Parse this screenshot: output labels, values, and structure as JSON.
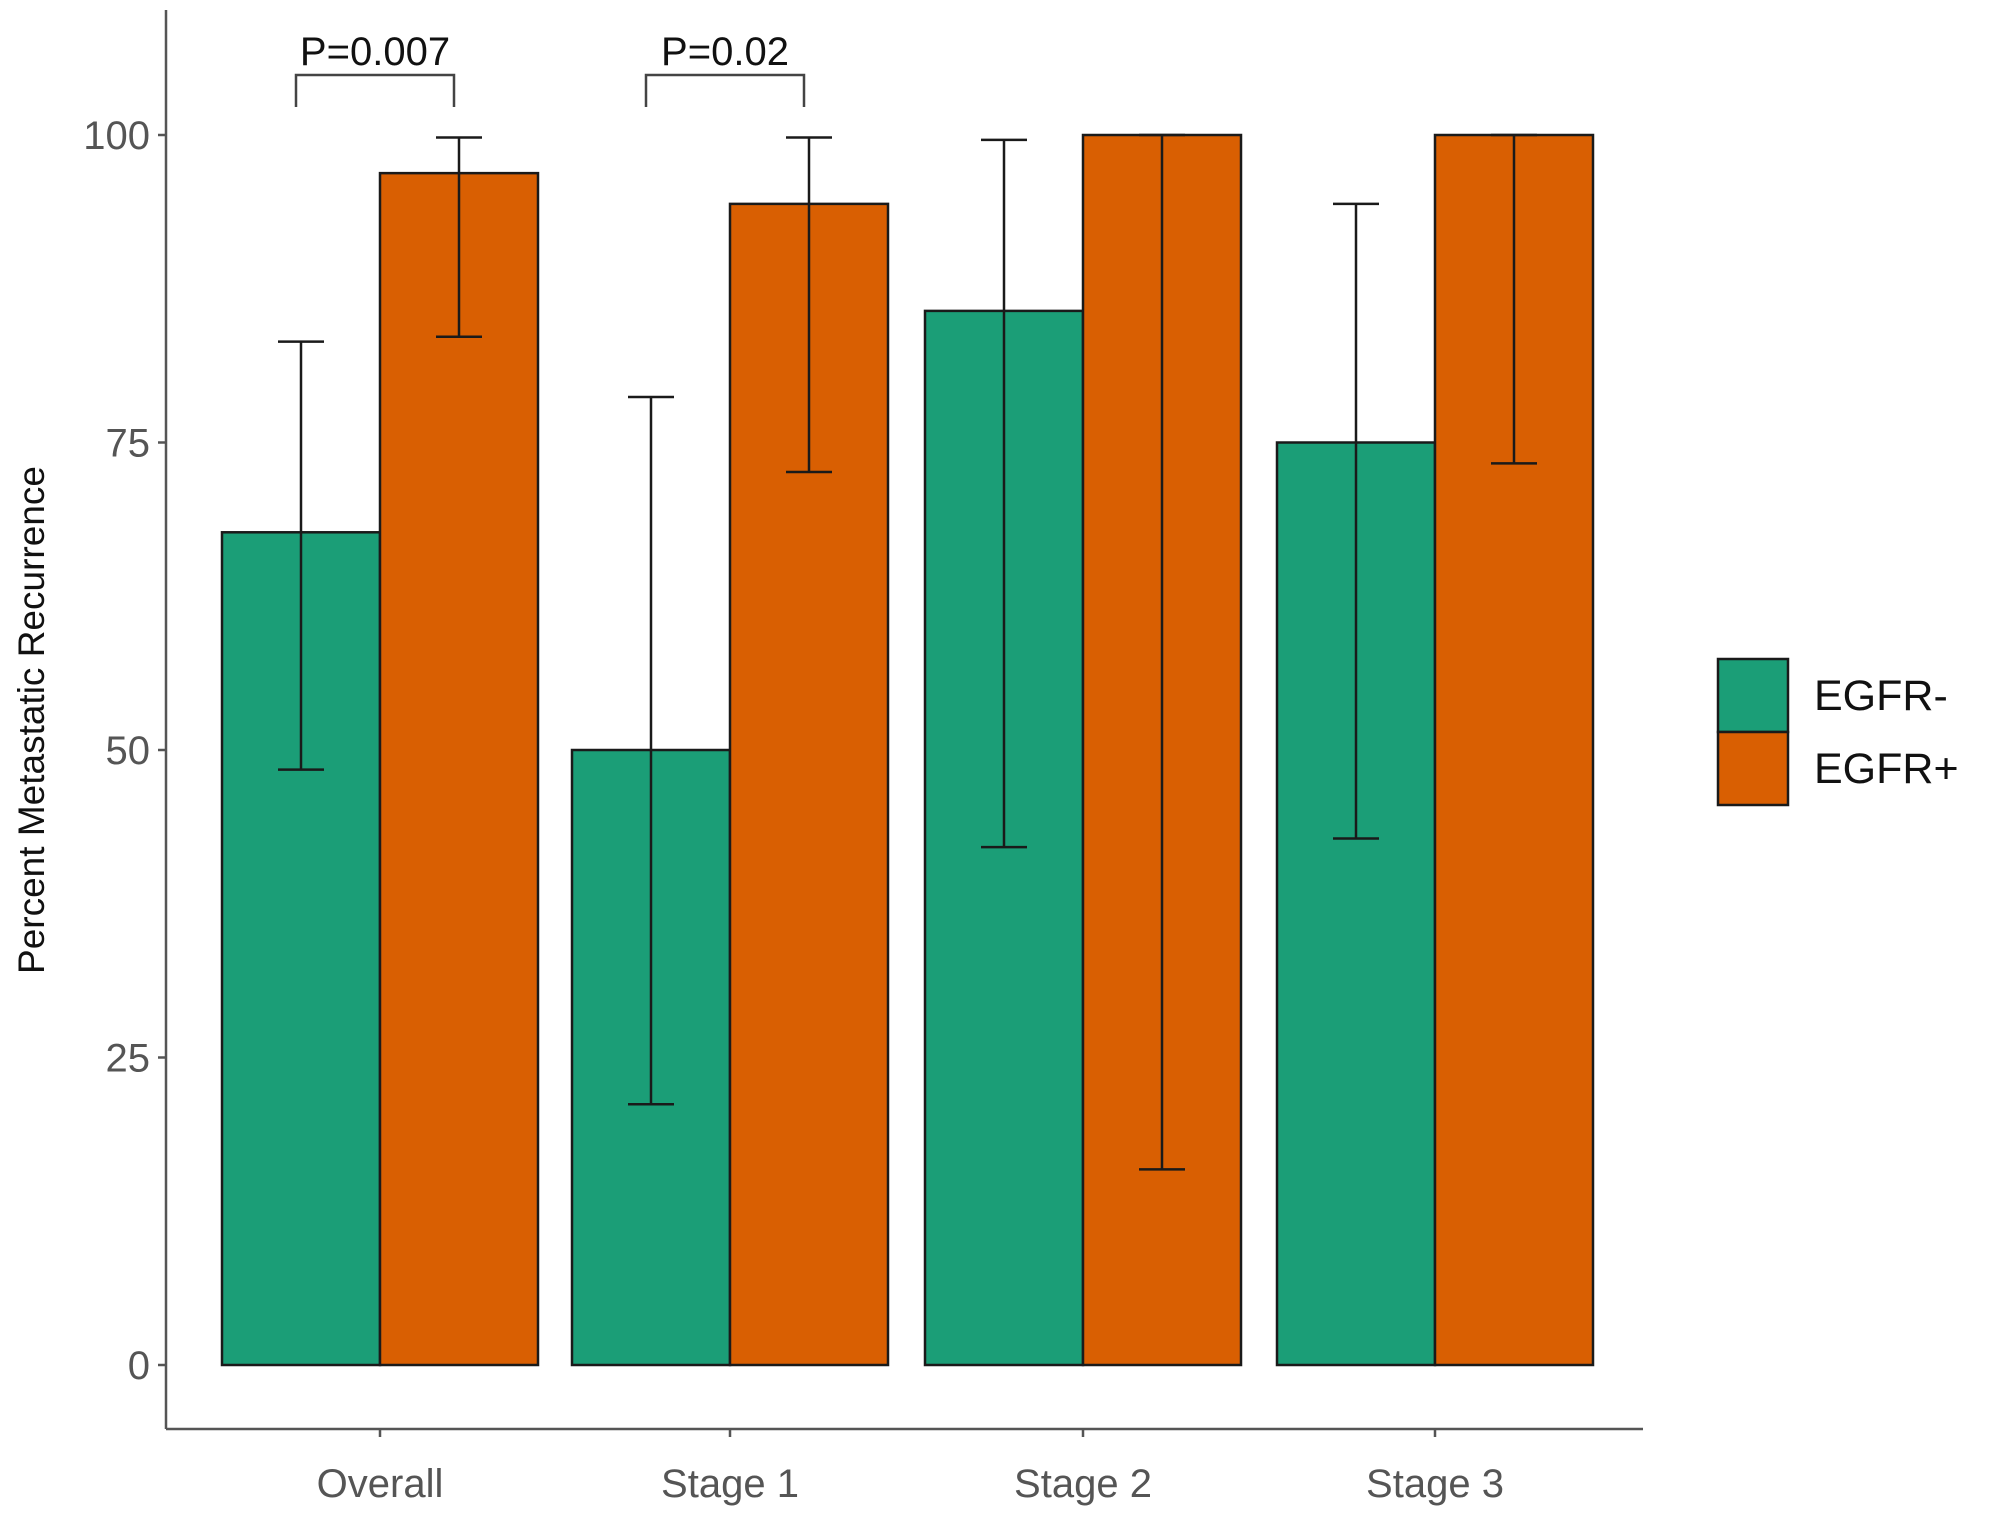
{
  "chart_data": {
    "type": "bar",
    "title": "",
    "xlabel": "",
    "ylabel": "Percent Metastatic Recurrence",
    "ylim": [
      0,
      100
    ],
    "yticks": [
      0,
      25,
      50,
      75,
      100
    ],
    "grid": false,
    "legend_placement": "right",
    "categories": [
      "Overall",
      "Stage 1",
      "Stage 2",
      "Stage 3"
    ],
    "series": [
      {
        "name": "EGFR-",
        "color": "#1b9e77",
        "values": [
          67.7,
          50,
          85.7,
          75
        ],
        "error_low": [
          48.4,
          21.2,
          42.1,
          42.8
        ],
        "error_high": [
          83.2,
          78.7,
          99.6,
          94.4
        ]
      },
      {
        "name": "EGFR+",
        "color": "#d95f02",
        "values": [
          96.9,
          94.4,
          100,
          100
        ],
        "error_low": [
          83.6,
          72.6,
          15.9,
          73.3
        ],
        "error_high": [
          99.8,
          99.8,
          100,
          100
        ]
      }
    ],
    "annotations": [
      {
        "text": "P=0.007",
        "category": "Overall"
      },
      {
        "text": "P=0.02",
        "category": "Stage 1"
      }
    ]
  }
}
